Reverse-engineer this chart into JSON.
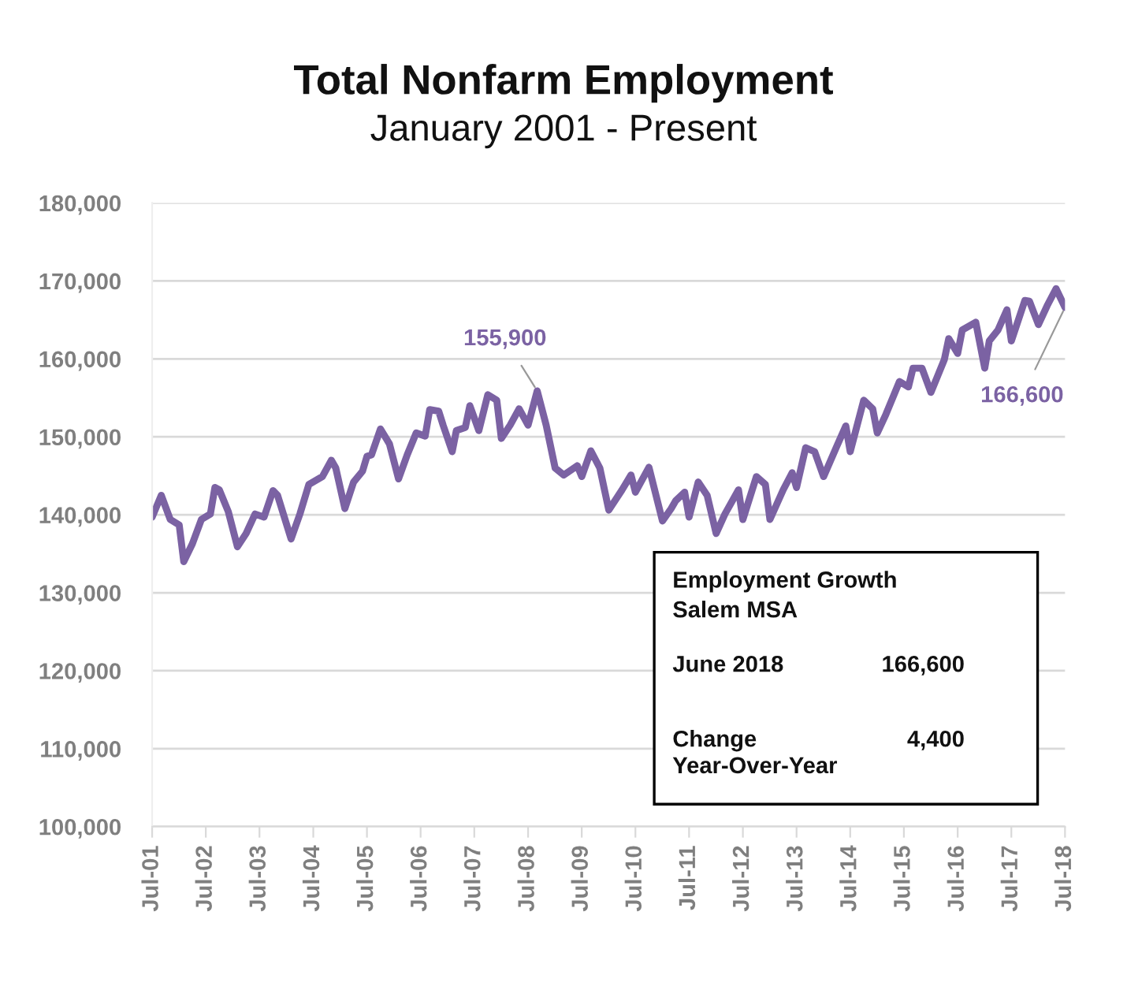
{
  "chart_data": {
    "type": "line",
    "title": "Total Nonfarm Employment",
    "subtitle": "January 2001 - Present",
    "x": [
      "2001-07",
      "2001-09",
      "2001-11",
      "2002-01",
      "2002-02",
      "2002-04",
      "2002-06",
      "2002-08",
      "2002-09",
      "2002-10",
      "2002-12",
      "2003-02",
      "2003-04",
      "2003-06",
      "2003-08",
      "2003-10",
      "2003-11",
      "2004-02",
      "2004-04",
      "2004-06",
      "2004-09",
      "2004-11",
      "2004-12",
      "2005-02",
      "2005-04",
      "2005-06",
      "2005-07",
      "2005-08",
      "2005-10",
      "2005-12",
      "2006-02",
      "2006-04",
      "2006-06",
      "2006-08",
      "2006-09",
      "2006-11",
      "2006-12",
      "2007-02",
      "2007-03",
      "2007-05",
      "2007-06",
      "2007-08",
      "2007-10",
      "2007-12",
      "2008-01",
      "2008-03",
      "2008-05",
      "2008-07",
      "2008-09",
      "2008-11",
      "2009-01",
      "2009-03",
      "2009-06",
      "2009-07",
      "2009-09",
      "2009-11",
      "2010-01",
      "2010-04",
      "2010-06",
      "2010-07",
      "2010-10",
      "2011-01",
      "2011-03",
      "2011-04",
      "2011-06",
      "2011-07",
      "2011-09",
      "2011-11",
      "2012-01",
      "2012-03",
      "2012-06",
      "2012-07",
      "2012-10",
      "2012-12",
      "2013-01",
      "2013-04",
      "2013-06",
      "2013-07",
      "2013-09",
      "2013-11",
      "2014-01",
      "2014-04",
      "2014-06",
      "2014-07",
      "2014-10",
      "2014-12",
      "2015-01",
      "2015-03",
      "2015-06",
      "2015-08",
      "2015-09",
      "2015-11",
      "2016-01",
      "2016-04",
      "2016-05",
      "2016-07",
      "2016-08",
      "2016-11",
      "2017-01",
      "2017-02",
      "2017-04",
      "2017-06",
      "2017-07",
      "2017-10",
      "2017-11",
      "2018-01",
      "2018-03",
      "2018-05",
      "2018-07"
    ],
    "series": [
      {
        "color": "#7b62a3",
        "values": [
          139700,
          142500,
          139400,
          138700,
          134000,
          136300,
          139400,
          140100,
          143500,
          143200,
          140400,
          135900,
          137600,
          140100,
          139700,
          143100,
          142500,
          136900,
          140100,
          143900,
          144900,
          147000,
          146000,
          140800,
          144200,
          145600,
          147500,
          147700,
          151000,
          149100,
          144600,
          147700,
          150500,
          150100,
          153500,
          153300,
          151500,
          148100,
          150800,
          151200,
          154000,
          150800,
          155400,
          154700,
          149800,
          151500,
          153600,
          151500,
          155900,
          151500,
          146000,
          145100,
          146300,
          144900,
          148200,
          146000,
          140600,
          143200,
          145100,
          142900,
          146100,
          139200,
          140800,
          141800,
          142900,
          139700,
          144200,
          142500,
          137600,
          140100,
          143200,
          139400,
          144900,
          143900,
          139400,
          143200,
          145400,
          143500,
          148600,
          148100,
          144900,
          148800,
          151400,
          148100,
          154700,
          153600,
          150500,
          152900,
          157100,
          156400,
          158800,
          158800,
          155700,
          159900,
          162600,
          160700,
          163700,
          164700,
          158800,
          162300,
          163700,
          166300,
          162300,
          167500,
          167400,
          164400,
          166800,
          169000,
          166600
        ]
      }
    ],
    "xlim": [
      "2001-07",
      "2018-07"
    ],
    "xticks": [
      {
        "value": "2001-07",
        "label": "Jul-01"
      },
      {
        "value": "2002-07",
        "label": "Jul-02"
      },
      {
        "value": "2003-07",
        "label": "Jul-03"
      },
      {
        "value": "2004-07",
        "label": "Jul-04"
      },
      {
        "value": "2005-07",
        "label": "Jul-05"
      },
      {
        "value": "2006-07",
        "label": "Jul-06"
      },
      {
        "value": "2007-07",
        "label": "Jul-07"
      },
      {
        "value": "2008-07",
        "label": "Jul-08"
      },
      {
        "value": "2009-07",
        "label": "Jul-09"
      },
      {
        "value": "2010-07",
        "label": "Jul-10"
      },
      {
        "value": "2011-07",
        "label": "Jul-11"
      },
      {
        "value": "2012-07",
        "label": "Jul-12"
      },
      {
        "value": "2013-07",
        "label": "Jul-13"
      },
      {
        "value": "2014-07",
        "label": "Jul-14"
      },
      {
        "value": "2015-07",
        "label": "Jul-15"
      },
      {
        "value": "2016-07",
        "label": "Jul-16"
      },
      {
        "value": "2017-07",
        "label": "Jul-17"
      },
      {
        "value": "2018-07",
        "label": "Jul-18"
      }
    ],
    "ylim": [
      100000,
      180000
    ],
    "yticks": [
      {
        "value": 100000,
        "label": "100,000"
      },
      {
        "value": 110000,
        "label": "110,000"
      },
      {
        "value": 120000,
        "label": "120,000"
      },
      {
        "value": 130000,
        "label": "130,000"
      },
      {
        "value": 140000,
        "label": "140,000"
      },
      {
        "value": 150000,
        "label": "150,000"
      },
      {
        "value": 160000,
        "label": "160,000"
      },
      {
        "value": 170000,
        "label": "170,000"
      },
      {
        "value": 180000,
        "label": "180,000"
      }
    ],
    "grid": "y",
    "marker": "none",
    "line_style": "solid",
    "annotations": [
      {
        "text": "155,900",
        "x": "2008-09",
        "y": 155900
      },
      {
        "text": "166,600",
        "x": "2018-07",
        "y": 166600
      },
      "Employment Growth\nSalem MSA",
      "June 2018",
      "166,600",
      "Change\nYear-Over-Year",
      "4,400"
    ]
  }
}
